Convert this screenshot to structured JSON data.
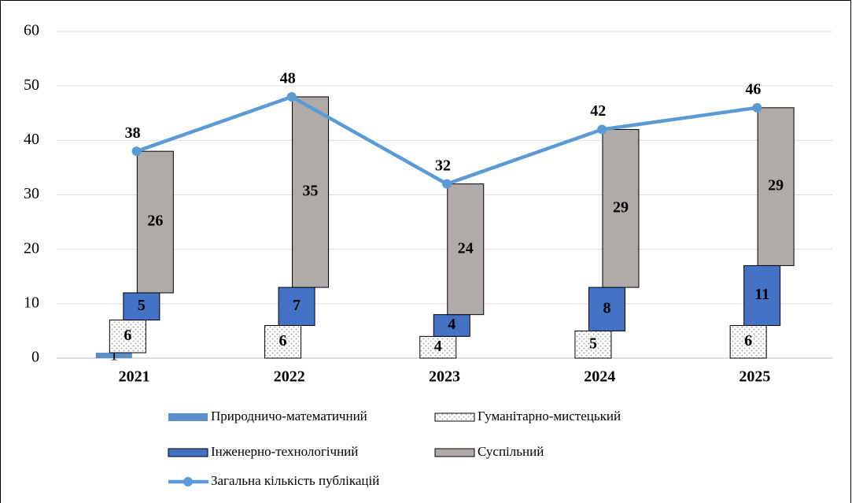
{
  "chart_data": {
    "type": "bar",
    "stacked": true,
    "categories": [
      "2021",
      "2022",
      "2023",
      "2024",
      "2025"
    ],
    "series": [
      {
        "name": "Природничо-математичний",
        "color": "#5b8fcc",
        "values": [
          1,
          0,
          0,
          0,
          0
        ]
      },
      {
        "name": "Гуманітарно-мистецький",
        "color": "#ffffff",
        "values": [
          6,
          6,
          4,
          5,
          6
        ]
      },
      {
        "name": "Інженерно-технологічний",
        "color": "#4472c4",
        "values": [
          5,
          7,
          4,
          8,
          11
        ]
      },
      {
        "name": "Суспільний",
        "color": "#b0aaa8",
        "values": [
          26,
          35,
          24,
          29,
          29
        ]
      },
      {
        "name": "Загальна кількість публікацій",
        "type": "line",
        "color": "#5b9bd5",
        "values": [
          38,
          48,
          32,
          42,
          46
        ]
      }
    ],
    "ylim": [
      0,
      60
    ],
    "yticks": [
      0,
      10,
      20,
      30,
      40,
      50,
      60
    ],
    "grid": true
  }
}
